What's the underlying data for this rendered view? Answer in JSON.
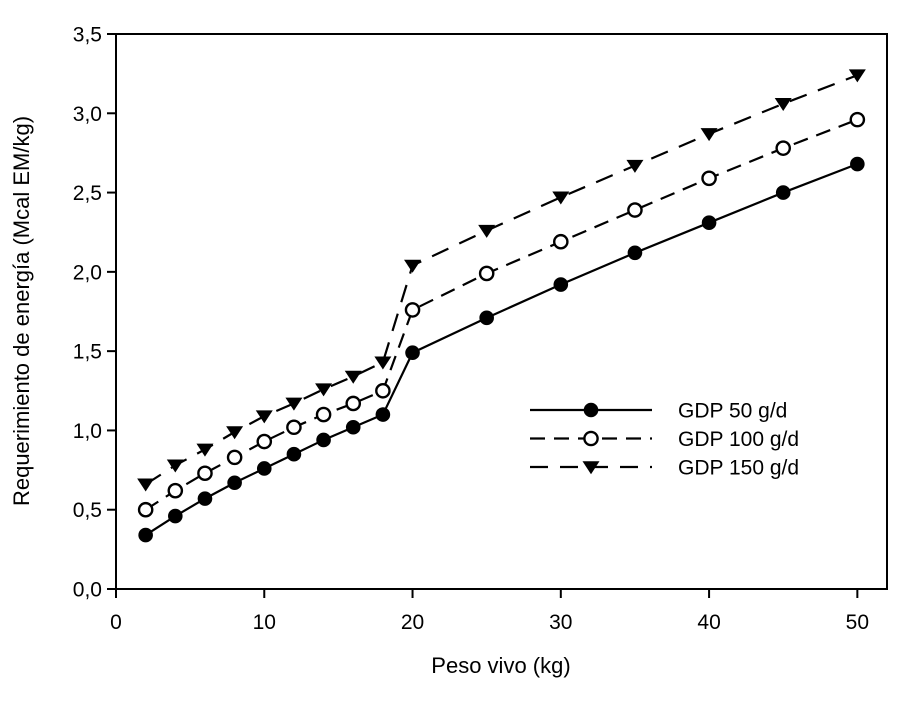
{
  "chart_data": {
    "type": "line",
    "title": "",
    "xlabel": "Peso vivo (kg)",
    "ylabel": "Requerimiento de energía (Mcal EM/kg)",
    "xlim": [
      0,
      52
    ],
    "ylim": [
      0,
      3.5
    ],
    "x_ticks": [
      0,
      10,
      20,
      30,
      40,
      50
    ],
    "x_tick_labels": [
      "0",
      "10",
      "20",
      "30",
      "40",
      "50"
    ],
    "y_ticks": [
      0,
      0.5,
      1,
      1.5,
      2,
      2.5,
      3,
      3.5
    ],
    "y_tick_labels": [
      "0,0",
      "0,5",
      "1,0",
      "1,5",
      "2,0",
      "2,5",
      "3,0",
      "3,5"
    ],
    "grid": false,
    "frame": true,
    "color": "#000000",
    "background": "#ffffff",
    "legend_position": "right-center",
    "x": [
      2,
      4,
      6,
      8,
      10,
      12,
      14,
      16,
      18,
      20,
      25,
      30,
      35,
      40,
      45,
      50
    ],
    "series": [
      {
        "name": "GDP 50 g/d",
        "marker": "filled-circle",
        "line": "solid",
        "values": [
          0.34,
          0.46,
          0.57,
          0.67,
          0.76,
          0.85,
          0.94,
          1.02,
          1.1,
          1.49,
          1.71,
          1.92,
          2.12,
          2.31,
          2.5,
          2.68
        ]
      },
      {
        "name": "GDP 100 g/d",
        "marker": "open-circle",
        "line": "dashed",
        "values": [
          0.5,
          0.62,
          0.73,
          0.83,
          0.93,
          1.02,
          1.1,
          1.17,
          1.25,
          1.76,
          1.99,
          2.19,
          2.39,
          2.59,
          2.78,
          2.96
        ]
      },
      {
        "name": "GDP 150 g/d",
        "marker": "filled-triangle-down",
        "line": "long-dashed",
        "values": [
          0.66,
          0.78,
          0.88,
          0.99,
          1.09,
          1.17,
          1.26,
          1.34,
          1.43,
          2.04,
          2.26,
          2.47,
          2.67,
          2.87,
          3.06,
          3.24
        ]
      }
    ]
  }
}
